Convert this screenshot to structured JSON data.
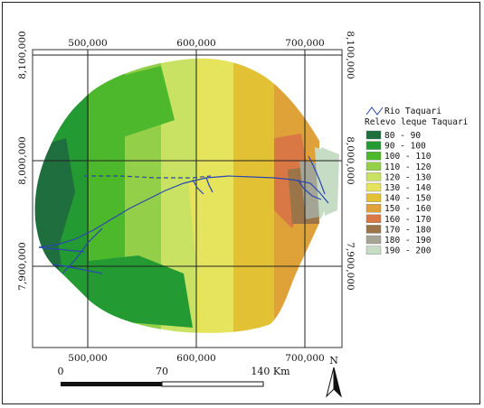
{
  "map": {
    "x_top_labels": [
      "500,000",
      "600,000",
      "700,000"
    ],
    "x_bottom_labels": [
      "500,000",
      "600,000",
      "700,000"
    ],
    "y_left_labels": [
      "8,100,000",
      "8,000,000",
      "7,900,000"
    ],
    "y_right_labels": [
      "8,100,000",
      "8,000,000",
      "7,900,000"
    ]
  },
  "legend": {
    "river_label": "Rio Taquari",
    "relief_title": "Relevo leque Taquari",
    "classes": [
      {
        "label": "80 - 90",
        "color": "#1e6e3e"
      },
      {
        "label": "90 - 100",
        "color": "#239a32"
      },
      {
        "label": "100 - 110",
        "color": "#4db82c"
      },
      {
        "label": "110 - 120",
        "color": "#93cf48"
      },
      {
        "label": "120 - 130",
        "color": "#c9e263"
      },
      {
        "label": "130 - 140",
        "color": "#e6e45c"
      },
      {
        "label": "140 - 150",
        "color": "#e2c234"
      },
      {
        "label": "150 - 160",
        "color": "#dfa238"
      },
      {
        "label": "160 - 170",
        "color": "#d97845"
      },
      {
        "label": "170 - 180",
        "color": "#9b7548"
      },
      {
        "label": "180 - 190",
        "color": "#a5a596"
      },
      {
        "label": "190 - 200",
        "color": "#c7dcc4"
      }
    ]
  },
  "scalebar": {
    "labels": [
      "0",
      "70",
      "140 Km"
    ]
  },
  "north": {
    "label": "N"
  },
  "colors": {
    "river": "#2a46b0"
  }
}
